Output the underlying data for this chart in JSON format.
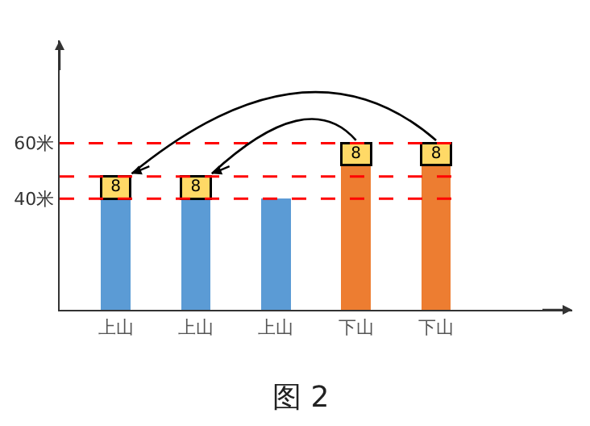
{
  "chart_data": {
    "type": "bar",
    "title": "图 2",
    "categories": [
      "上山",
      "上山",
      "上山",
      "下山",
      "下山"
    ],
    "series": [
      {
        "color": "#5b9bd5",
        "values": [
          40,
          40,
          40,
          null,
          null
        ]
      },
      {
        "color": "#ed7d31",
        "values": [
          null,
          null,
          null,
          52,
          52
        ]
      },
      {
        "color": "#ffd966",
        "values": [
          8,
          8,
          null,
          8,
          8
        ],
        "value_labels": [
          "8",
          "8",
          null,
          "8",
          "8"
        ]
      }
    ],
    "stacked": true,
    "ylim": [
      0,
      97
    ],
    "yticks": [
      {
        "value": 40,
        "label": "40米"
      },
      {
        "value": 60,
        "label": "60米"
      }
    ],
    "ref_lines": [
      {
        "axis": "y",
        "value": 40,
        "color": "#ff0000",
        "line_style": "dashed"
      },
      {
        "axis": "y",
        "value": 48,
        "color": "#ff0000",
        "line_style": "dashed"
      },
      {
        "axis": "y",
        "value": 60,
        "color": "#ff0000",
        "line_style": "dashed"
      }
    ],
    "data_labels": false
  }
}
